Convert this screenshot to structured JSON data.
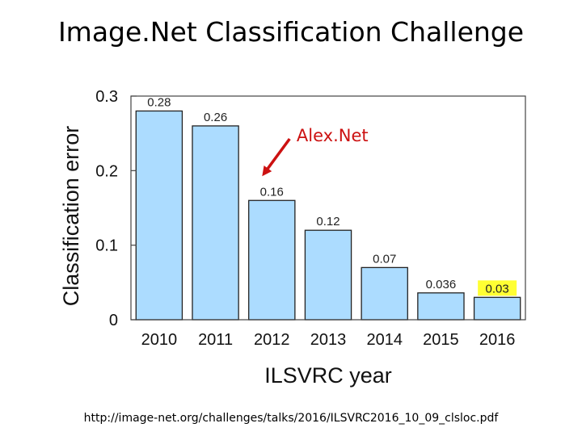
{
  "slide": {
    "title": "Image.Net Classification Challenge",
    "source": "http://image-net.org/challenges/talks/2016/ILSVRC2016_10_09_clsloc.pdf"
  },
  "chart_data": {
    "type": "bar",
    "categories": [
      "2010",
      "2011",
      "2012",
      "2013",
      "2014",
      "2015",
      "2016"
    ],
    "values": [
      0.28,
      0.26,
      0.16,
      0.12,
      0.07,
      0.036,
      0.03
    ],
    "value_labels": [
      "0.28",
      "0.26",
      "0.16",
      "0.12",
      "0.07",
      "0.036",
      "0.03"
    ],
    "highlighted_label_index": 6,
    "xlabel": "ILSVRC year",
    "ylabel": "Classification error",
    "ylim": [
      0,
      0.3
    ],
    "yticks": [
      0,
      0.1,
      0.2,
      0.3
    ],
    "ytick_labels": [
      "0",
      "0.1",
      "0.2",
      "0.3"
    ],
    "grid": false,
    "annotation": {
      "text": "Alex.Net",
      "target_category": "2012"
    },
    "colors": {
      "bar_fill": "#acdcff",
      "bar_stroke": "#222222",
      "highlight": "#ffff33",
      "annotation": "#cc1111"
    }
  }
}
